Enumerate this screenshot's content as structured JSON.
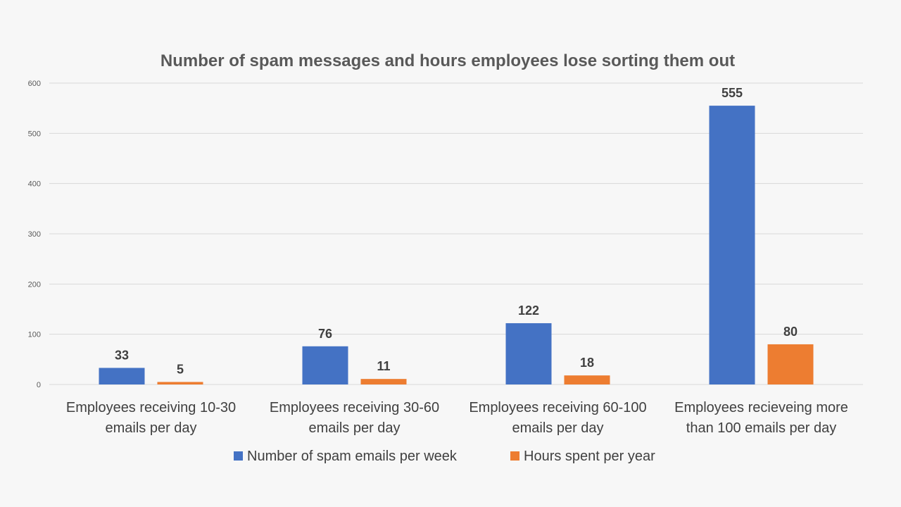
{
  "chart_data": {
    "type": "bar",
    "title": "Number of spam messages and hours employees lose sorting them out",
    "xlabel": "",
    "ylabel": "",
    "ylim": [
      0,
      600
    ],
    "yticks": [
      "0",
      "100",
      "200",
      "300",
      "400",
      "500",
      "600"
    ],
    "grid": true,
    "legend_position": "bottom",
    "categories": [
      [
        "Employees receiving 10-30",
        "emails per day"
      ],
      [
        "Employees receiving 30-60",
        "emails per day"
      ],
      [
        "Employees receiving 60-100",
        "emails per day"
      ],
      [
        "Employees recieveing more",
        "than 100 emails per day"
      ]
    ],
    "series": [
      {
        "name": "Number of spam emails per week",
        "color": "#4472c4",
        "values": [
          33,
          76,
          122,
          555
        ],
        "labels": [
          "33",
          "76",
          "122",
          "555"
        ]
      },
      {
        "name": "Hours spent per year",
        "color": "#ed7d31",
        "values": [
          5,
          11,
          18,
          80
        ],
        "labels": [
          "5",
          "11",
          "18",
          "80"
        ]
      }
    ]
  }
}
